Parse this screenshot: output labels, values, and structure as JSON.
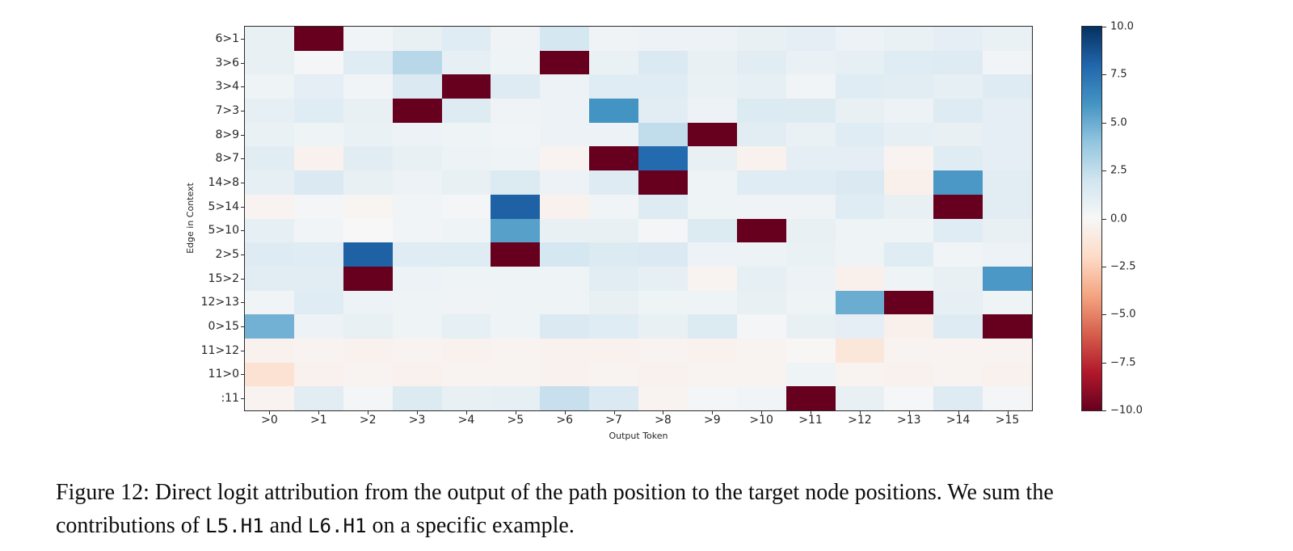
{
  "figure": {
    "caption_segments": [
      {
        "text": "Figure 12: Direct logit attribution from the output of the path position to the target node positions. We sum the",
        "style": "serif"
      },
      {
        "br": true
      },
      {
        "text": "contributions of ",
        "style": "serif"
      },
      {
        "text": "L5.H1",
        "style": "mono"
      },
      {
        "text": " and ",
        "style": "serif"
      },
      {
        "text": "L6.H1",
        "style": "mono"
      },
      {
        "text": " on a specific example.",
        "style": "serif"
      }
    ]
  },
  "chart_data": {
    "type": "heatmap",
    "xlabel": "Output Token",
    "ylabel": "Edge in Context",
    "x_labels": [
      ">0",
      ">1",
      ">2",
      ">3",
      ">4",
      ">5",
      ">6",
      ">7",
      ">8",
      ">9",
      ">10",
      ">11",
      ">12",
      ">13",
      ">14",
      ">15"
    ],
    "y_labels": [
      "6>1",
      "3>6",
      "3>4",
      "7>3",
      "8>9",
      "8>7",
      "14>8",
      "5>14",
      "5>10",
      "2>5",
      "15>2",
      "12>13",
      "0>15",
      "11>12",
      "11>0",
      ":11"
    ],
    "vmin": -10.0,
    "vmax": 10.0,
    "colormap": "RdBu",
    "colormap_stops": [
      "#67001f",
      "#b2182b",
      "#d6604d",
      "#f4a582",
      "#fddbc7",
      "#f7f7f7",
      "#d1e5f0",
      "#92c5de",
      "#4393c3",
      "#2166ac",
      "#053061"
    ],
    "colorbar_tick_labels": [
      "10.0",
      "7.5",
      "5.0",
      "2.5",
      "0.0",
      "−2.5",
      "−5.0",
      "−7.5",
      "−10.0"
    ],
    "legend_position": "right",
    "grid": false,
    "values": [
      [
        0.8,
        -10.0,
        0.3,
        0.8,
        1.2,
        0.4,
        1.8,
        0.4,
        0.6,
        0.6,
        0.8,
        1.0,
        0.6,
        0.7,
        1.0,
        0.7
      ],
      [
        0.8,
        0.2,
        1.2,
        2.8,
        0.9,
        0.5,
        -10.0,
        0.7,
        1.5,
        0.8,
        1.1,
        0.7,
        0.9,
        1.2,
        1.3,
        0.3
      ],
      [
        0.5,
        1.0,
        0.3,
        1.5,
        -10.0,
        1.3,
        0.6,
        1.2,
        1.2,
        0.7,
        0.9,
        0.3,
        1.2,
        1.1,
        0.9,
        1.3
      ],
      [
        0.9,
        1.2,
        0.8,
        -10.0,
        1.3,
        0.4,
        0.6,
        6.0,
        1.1,
        0.6,
        1.4,
        1.4,
        0.8,
        0.6,
        1.3,
        1.0
      ],
      [
        0.7,
        0.5,
        0.7,
        0.6,
        0.5,
        0.3,
        0.6,
        0.6,
        2.5,
        -10.0,
        1.1,
        0.7,
        1.2,
        0.9,
        0.8,
        1.0
      ],
      [
        1.1,
        -0.4,
        1.1,
        0.8,
        0.6,
        0.5,
        -0.3,
        -10.0,
        7.8,
        0.8,
        -0.4,
        1.0,
        1.0,
        -0.3,
        1.2,
        1.0
      ],
      [
        0.9,
        1.5,
        0.8,
        0.6,
        0.8,
        1.4,
        0.6,
        1.3,
        -10.0,
        0.5,
        1.2,
        1.2,
        1.5,
        -0.5,
        5.8,
        1.1
      ],
      [
        -0.3,
        0.2,
        -0.2,
        0.3,
        0.2,
        8.2,
        -0.4,
        0.3,
        1.3,
        0.5,
        0.4,
        0.4,
        1.2,
        0.8,
        -10.0,
        1.1
      ],
      [
        0.9,
        0.3,
        0.0,
        0.3,
        0.5,
        5.5,
        0.8,
        0.8,
        0.2,
        1.4,
        -10.0,
        0.8,
        0.5,
        0.5,
        1.2,
        0.8
      ],
      [
        1.3,
        1.2,
        8.2,
        1.2,
        1.2,
        -10.0,
        1.8,
        1.4,
        1.5,
        0.6,
        0.6,
        0.7,
        0.5,
        1.2,
        0.3,
        0.6
      ],
      [
        1.1,
        1.1,
        -10.0,
        0.6,
        0.5,
        0.5,
        0.5,
        1.1,
        0.9,
        -0.3,
        0.9,
        0.6,
        -0.5,
        0.5,
        0.8,
        5.8
      ],
      [
        0.3,
        1.2,
        0.6,
        0.5,
        0.4,
        0.5,
        0.5,
        0.8,
        0.5,
        0.5,
        0.8,
        0.5,
        5.0,
        -10.0,
        0.9,
        0.5
      ],
      [
        4.8,
        0.6,
        0.8,
        0.5,
        0.9,
        0.5,
        1.5,
        1.2,
        0.8,
        1.4,
        0.2,
        0.8,
        1.0,
        -0.5,
        1.3,
        -10.0
      ],
      [
        -0.4,
        -0.3,
        -0.4,
        -0.3,
        -0.4,
        -0.3,
        -0.4,
        -0.4,
        -0.3,
        -0.4,
        -0.3,
        -0.1,
        -1.2,
        -0.3,
        -0.3,
        -0.3
      ],
      [
        -1.5,
        -0.4,
        -0.3,
        -0.4,
        -0.3,
        -0.3,
        -0.4,
        -0.3,
        -0.4,
        -0.3,
        -0.3,
        0.5,
        -0.3,
        -0.4,
        -0.3,
        -0.4
      ],
      [
        -0.3,
        1.1,
        0.2,
        1.4,
        0.8,
        0.9,
        2.3,
        1.5,
        -0.3,
        0.2,
        0.3,
        -10.0,
        0.8,
        0.1,
        1.3,
        0.2
      ]
    ]
  }
}
